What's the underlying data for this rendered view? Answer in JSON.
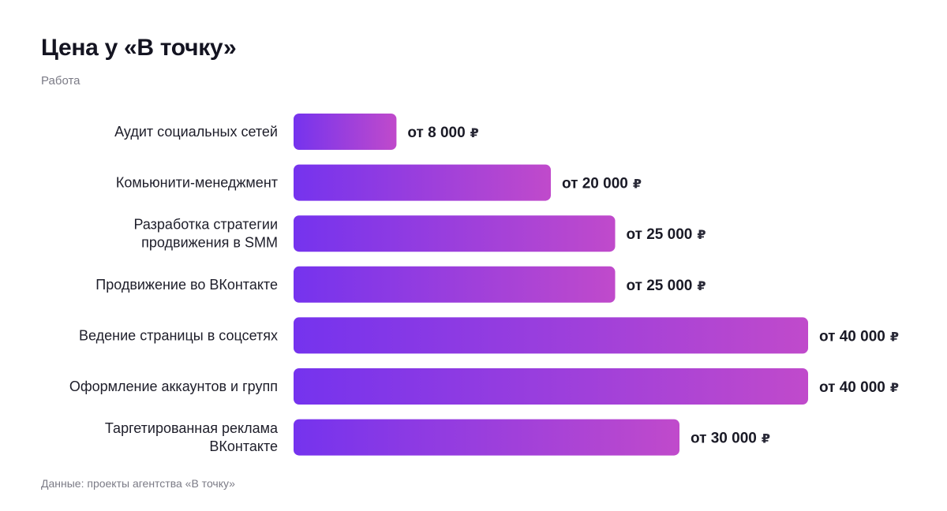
{
  "header": {
    "title": "Цена у «В точку»",
    "subtitle": "Работа"
  },
  "footer": {
    "source": "Данные: проекты агентства «В точку»"
  },
  "colors": {
    "bar_start": "#7533ee",
    "bar_end": "#c04acb"
  },
  "chart_data": {
    "type": "bar",
    "orientation": "horizontal",
    "categories": [
      [
        "Аудит социальных сетей"
      ],
      [
        "Комьюнити-менеджмент"
      ],
      [
        "Разработка стратегии",
        "продвижения в SMM"
      ],
      [
        "Продвижение во ВКонтакте"
      ],
      [
        "Ведение страницы в соцсетях"
      ],
      [
        "Оформление аккаунтов и групп"
      ],
      [
        "Таргетированная реклама",
        "ВКонтакте"
      ]
    ],
    "values": [
      8000,
      20000,
      25000,
      25000,
      40000,
      40000,
      30000
    ],
    "value_labels": [
      "от 8 000",
      "от 20 000",
      "от 25 000",
      "от 25 000",
      "от 40 000",
      "от 40 000",
      "от 30 000"
    ],
    "currency": "₽",
    "xlim": [
      0,
      40000
    ],
    "grid": false,
    "legend": "none"
  }
}
